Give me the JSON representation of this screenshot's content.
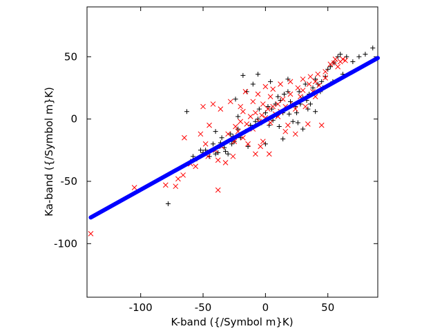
{
  "chart_data": {
    "type": "scatter",
    "xlabel": "K-band ({/Symbol m}K)",
    "ylabel": "Ka-band ({/Symbol m}K)",
    "xlim": [
      -143,
      90
    ],
    "ylim": [
      -143,
      90
    ],
    "xticks": [
      -100,
      -50,
      0,
      50
    ],
    "yticks": [
      -100,
      -50,
      0,
      50
    ],
    "grid": false,
    "legend": "none",
    "series": [
      {
        "marker": "plus",
        "color": "#000000",
        "points": [
          [
            -78,
            -68
          ],
          [
            -63,
            6
          ],
          [
            -40,
            -28
          ],
          [
            -33,
            -23
          ],
          [
            -30,
            -28
          ],
          [
            -27,
            -20
          ],
          [
            -22,
            -8
          ],
          [
            -18,
            35
          ],
          [
            -15,
            22
          ],
          [
            -10,
            28
          ],
          [
            -5,
            8
          ],
          [
            -3,
            -3
          ],
          [
            0,
            5
          ],
          [
            2,
            10
          ],
          [
            5,
            8
          ],
          [
            8,
            12
          ],
          [
            10,
            18
          ],
          [
            12,
            15
          ],
          [
            15,
            20
          ],
          [
            18,
            22
          ],
          [
            20,
            14
          ],
          [
            22,
            -2
          ],
          [
            25,
            5
          ],
          [
            27,
            22
          ],
          [
            30,
            17
          ],
          [
            32,
            28
          ],
          [
            35,
            20
          ],
          [
            38,
            25
          ],
          [
            40,
            32
          ],
          [
            42,
            28
          ],
          [
            45,
            30
          ],
          [
            48,
            34
          ],
          [
            50,
            40
          ],
          [
            52,
            42
          ],
          [
            55,
            45
          ],
          [
            58,
            50
          ],
          [
            60,
            52
          ],
          [
            65,
            50
          ],
          [
            70,
            46
          ],
          [
            75,
            50
          ],
          [
            80,
            52
          ],
          [
            86,
            57
          ],
          [
            -38,
            -27
          ],
          [
            -35,
            -15
          ],
          [
            -28,
            -12
          ],
          [
            -25,
            -18
          ],
          [
            -20,
            -15
          ],
          [
            -12,
            -5
          ],
          [
            -8,
            -2
          ],
          [
            3,
            -5
          ],
          [
            6,
            -1
          ],
          [
            9,
            3
          ],
          [
            14,
            5
          ],
          [
            16,
            8
          ],
          [
            19,
            4
          ],
          [
            24,
            10
          ],
          [
            28,
            12
          ],
          [
            33,
            15
          ],
          [
            36,
            12
          ],
          [
            44,
            22
          ],
          [
            -48,
            -25
          ],
          [
            -45,
            -30
          ],
          [
            -42,
            -20
          ],
          [
            -55,
            -32
          ],
          [
            -58,
            -30
          ],
          [
            -52,
            -25
          ],
          [
            -60,
            -34
          ],
          [
            -50,
            -27
          ],
          [
            -36,
            -19
          ],
          [
            -32,
            -26
          ],
          [
            -26,
            -14
          ],
          [
            -16,
            -10
          ],
          [
            -6,
            0
          ],
          [
            11,
            -6
          ],
          [
            26,
            -3
          ],
          [
            34,
            8
          ],
          [
            46,
            25
          ],
          [
            54,
            30
          ],
          [
            62,
            36
          ],
          [
            -24,
            16
          ],
          [
            -6,
            36
          ],
          [
            4,
            30
          ],
          [
            18,
            32
          ],
          [
            -22,
            2
          ],
          [
            -14,
            -22
          ],
          [
            0,
            -20
          ],
          [
            14,
            -16
          ],
          [
            30,
            -8
          ],
          [
            40,
            6
          ],
          [
            -40,
            -10
          ]
        ]
      },
      {
        "marker": "cross",
        "color": "#ff0000",
        "points": [
          [
            -140,
            -92
          ],
          [
            -105,
            -55
          ],
          [
            -80,
            -53
          ],
          [
            -72,
            -54
          ],
          [
            -70,
            -48
          ],
          [
            -66,
            -45
          ],
          [
            -38,
            -57
          ],
          [
            -50,
            10
          ],
          [
            -52,
            -12
          ],
          [
            -65,
            -15
          ],
          [
            -45,
            -5
          ],
          [
            -40,
            -25
          ],
          [
            -35,
            -22
          ],
          [
            -30,
            -12
          ],
          [
            -25,
            -18
          ],
          [
            -22,
            -10
          ],
          [
            -20,
            -2
          ],
          [
            -18,
            -15
          ],
          [
            -15,
            -4
          ],
          [
            -12,
            2
          ],
          [
            -10,
            -8
          ],
          [
            -8,
            5
          ],
          [
            -5,
            -2
          ],
          [
            -3,
            3
          ],
          [
            0,
            1
          ],
          [
            2,
            8
          ],
          [
            4,
            -3
          ],
          [
            6,
            10
          ],
          [
            8,
            4
          ],
          [
            10,
            12
          ],
          [
            12,
            6
          ],
          [
            14,
            16
          ],
          [
            16,
            10
          ],
          [
            18,
            -5
          ],
          [
            20,
            20
          ],
          [
            22,
            12
          ],
          [
            24,
            8
          ],
          [
            26,
            25
          ],
          [
            28,
            18
          ],
          [
            30,
            23
          ],
          [
            32,
            10
          ],
          [
            35,
            28
          ],
          [
            38,
            22
          ],
          [
            40,
            30
          ],
          [
            43,
            27
          ],
          [
            45,
            -5
          ],
          [
            48,
            33
          ],
          [
            52,
            44
          ],
          [
            55,
            45
          ],
          [
            58,
            42
          ],
          [
            60,
            46
          ],
          [
            62,
            48
          ],
          [
            64,
            47
          ],
          [
            -42,
            12
          ],
          [
            -36,
            8
          ],
          [
            -28,
            14
          ],
          [
            -20,
            10
          ],
          [
            -14,
            -20
          ],
          [
            -8,
            -28
          ],
          [
            -4,
            -22
          ],
          [
            3,
            -28
          ],
          [
            -2,
            -18
          ],
          [
            -26,
            -30
          ],
          [
            -32,
            -35
          ],
          [
            -38,
            -33
          ],
          [
            -56,
            -38
          ],
          [
            -60,
            -36
          ],
          [
            -46,
            -30
          ],
          [
            -48,
            -20
          ],
          [
            -16,
            22
          ],
          [
            -6,
            20
          ],
          [
            0,
            26
          ],
          [
            6,
            24
          ],
          [
            12,
            28
          ],
          [
            20,
            30
          ],
          [
            30,
            32
          ],
          [
            36,
            34
          ],
          [
            42,
            36
          ],
          [
            56,
            48
          ],
          [
            48,
            38
          ],
          [
            -24,
            -6
          ],
          [
            -18,
            6
          ],
          [
            -10,
            14
          ],
          [
            -2,
            12
          ],
          [
            4,
            18
          ],
          [
            10,
            2
          ],
          [
            16,
            -10
          ],
          [
            24,
            -12
          ],
          [
            34,
            -4
          ],
          [
            40,
            18
          ]
        ]
      },
      {
        "marker": "line",
        "color": "#0000ff",
        "points": [
          [
            -140,
            -79
          ],
          [
            90,
            49
          ]
        ]
      }
    ]
  }
}
